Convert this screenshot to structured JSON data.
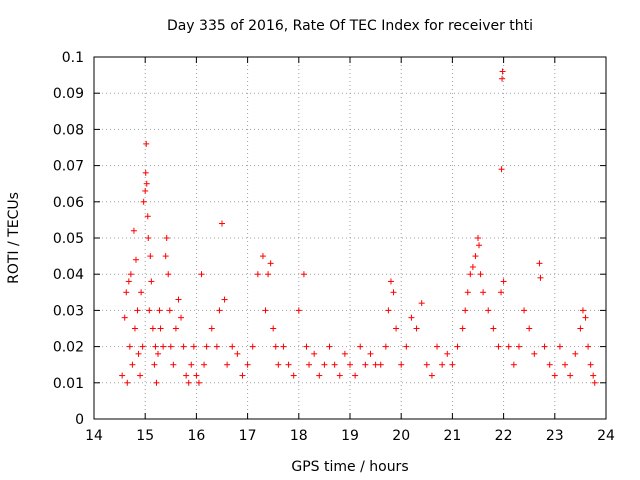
{
  "chart_data": {
    "type": "scatter",
    "title": "Day 335 of 2016, Rate Of TEC Index for receiver thti",
    "xlabel": "GPS time / hours",
    "ylabel": "ROTI / TECUs",
    "xlim": [
      14,
      24
    ],
    "ylim": [
      0,
      0.1
    ],
    "grid": true,
    "marker": "plus",
    "marker_color": "#ff0000",
    "x_ticks": [
      14,
      15,
      16,
      17,
      18,
      19,
      20,
      21,
      22,
      23,
      24
    ],
    "x_tick_labels": [
      "14",
      "15",
      "16",
      "17",
      "18",
      "19",
      "20",
      "21",
      "22",
      "23",
      "24"
    ],
    "y_ticks": [
      0,
      0.01,
      0.02,
      0.03,
      0.04,
      0.05,
      0.06,
      0.07,
      0.08,
      0.09,
      0.1
    ],
    "y_tick_labels": [
      "0",
      "0.01",
      "0.02",
      "0.03",
      "0.04",
      "0.05",
      "0.06",
      "0.07",
      "0.08",
      "0.09",
      "0.1"
    ],
    "series": [
      {
        "name": "ROTI",
        "x": [
          14.55,
          14.6,
          14.63,
          14.65,
          14.68,
          14.7,
          14.72,
          14.75,
          14.78,
          14.8,
          14.82,
          14.85,
          14.87,
          14.9,
          14.92,
          14.95,
          14.97,
          15.0,
          15.01,
          15.02,
          15.03,
          15.05,
          15.06,
          15.08,
          15.1,
          15.12,
          15.15,
          15.18,
          15.2,
          15.22,
          15.25,
          15.28,
          15.3,
          15.35,
          15.4,
          15.42,
          15.45,
          15.48,
          15.5,
          15.55,
          15.6,
          15.65,
          15.7,
          15.75,
          15.8,
          15.85,
          15.9,
          15.95,
          16.0,
          16.05,
          16.1,
          16.15,
          16.2,
          16.3,
          16.4,
          16.45,
          16.5,
          16.55,
          16.6,
          16.7,
          16.8,
          16.9,
          17.0,
          17.1,
          17.2,
          17.3,
          17.35,
          17.4,
          17.45,
          17.5,
          17.55,
          17.6,
          17.7,
          17.8,
          17.9,
          18.0,
          18.1,
          18.15,
          18.2,
          18.3,
          18.4,
          18.5,
          18.6,
          18.7,
          18.8,
          18.9,
          19.0,
          19.1,
          19.2,
          19.3,
          19.4,
          19.5,
          19.6,
          19.7,
          19.75,
          19.8,
          19.85,
          19.9,
          20.0,
          20.1,
          20.2,
          20.3,
          20.4,
          20.5,
          20.6,
          20.7,
          20.8,
          20.9,
          21.0,
          21.1,
          21.2,
          21.25,
          21.3,
          21.35,
          21.4,
          21.45,
          21.5,
          21.52,
          21.55,
          21.6,
          21.7,
          21.8,
          21.9,
          21.95,
          21.96,
          21.97,
          21.98,
          22.0,
          22.1,
          22.2,
          22.3,
          22.4,
          22.5,
          22.6,
          22.7,
          22.72,
          22.8,
          22.9,
          23.0,
          23.1,
          23.2,
          23.3,
          23.4,
          23.5,
          23.55,
          23.6,
          23.65,
          23.7,
          23.75,
          23.78
        ],
        "y": [
          0.012,
          0.028,
          0.035,
          0.01,
          0.038,
          0.02,
          0.04,
          0.015,
          0.052,
          0.025,
          0.044,
          0.03,
          0.018,
          0.012,
          0.035,
          0.02,
          0.06,
          0.063,
          0.068,
          0.076,
          0.065,
          0.056,
          0.05,
          0.03,
          0.045,
          0.038,
          0.025,
          0.015,
          0.02,
          0.01,
          0.018,
          0.03,
          0.025,
          0.02,
          0.045,
          0.05,
          0.04,
          0.03,
          0.02,
          0.015,
          0.025,
          0.033,
          0.028,
          0.02,
          0.012,
          0.01,
          0.015,
          0.02,
          0.012,
          0.01,
          0.04,
          0.015,
          0.02,
          0.025,
          0.02,
          0.03,
          0.054,
          0.033,
          0.015,
          0.02,
          0.018,
          0.012,
          0.015,
          0.02,
          0.04,
          0.045,
          0.03,
          0.04,
          0.043,
          0.025,
          0.02,
          0.015,
          0.02,
          0.015,
          0.012,
          0.03,
          0.04,
          0.02,
          0.015,
          0.018,
          0.012,
          0.015,
          0.02,
          0.015,
          0.012,
          0.018,
          0.015,
          0.012,
          0.02,
          0.015,
          0.018,
          0.015,
          0.015,
          0.02,
          0.03,
          0.038,
          0.035,
          0.025,
          0.015,
          0.02,
          0.028,
          0.025,
          0.032,
          0.015,
          0.012,
          0.02,
          0.015,
          0.018,
          0.015,
          0.02,
          0.025,
          0.03,
          0.035,
          0.04,
          0.042,
          0.045,
          0.05,
          0.048,
          0.04,
          0.035,
          0.03,
          0.025,
          0.02,
          0.035,
          0.069,
          0.094,
          0.096,
          0.038,
          0.02,
          0.015,
          0.02,
          0.03,
          0.025,
          0.018,
          0.043,
          0.039,
          0.02,
          0.015,
          0.012,
          0.02,
          0.015,
          0.012,
          0.018,
          0.025,
          0.03,
          0.028,
          0.02,
          0.015,
          0.012,
          0.01
        ]
      }
    ]
  }
}
